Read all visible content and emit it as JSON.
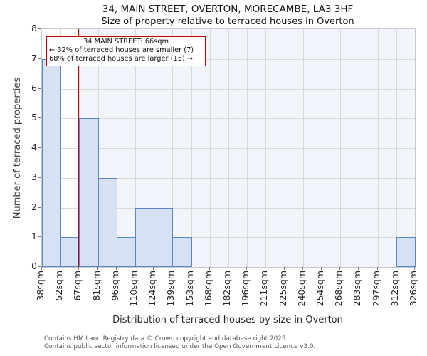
{
  "title": "34, MAIN STREET, OVERTON, MORECAMBE, LA3 3HF",
  "subtitle": "Size of property relative to terraced houses in Overton",
  "annotation": {
    "line1": "34 MAIN STREET: 66sqm",
    "line2": "← 32% of terraced houses are smaller (7)",
    "line3": "68% of terraced houses are larger (15) →"
  },
  "footer": {
    "line1": "Contains HM Land Registry data © Crown copyright and database right 2025.",
    "line2": "Contains public sector information licensed under the Open Government Licence v3.0."
  },
  "chart_data": {
    "type": "bar",
    "title": "34, MAIN STREET, OVERTON, MORECAMBE, LA3 3HF",
    "subtitle": "Size of property relative to terraced houses in Overton",
    "xlabel": "Distribution of terraced houses by size in Overton",
    "ylabel": "Number of terraced properties",
    "bin_edges_sqm": [
      38,
      52,
      67,
      81,
      96,
      110,
      124,
      139,
      153,
      168,
      182,
      196,
      211,
      225,
      240,
      254,
      268,
      283,
      297,
      312,
      326
    ],
    "x_tick_labels": [
      "38sqm",
      "52sqm",
      "67sqm",
      "81sqm",
      "96sqm",
      "110sqm",
      "124sqm",
      "139sqm",
      "153sqm",
      "168sqm",
      "182sqm",
      "196sqm",
      "211sqm",
      "225sqm",
      "240sqm",
      "254sqm",
      "268sqm",
      "283sqm",
      "297sqm",
      "312sqm",
      "326sqm"
    ],
    "values": [
      7,
      1,
      5,
      3,
      1,
      2,
      2,
      1,
      0,
      0,
      0,
      0,
      0,
      0,
      0,
      0,
      0,
      0,
      0,
      1
    ],
    "ylim": [
      0,
      8
    ],
    "y_ticks": [
      0,
      1,
      2,
      3,
      4,
      5,
      6,
      7,
      8
    ],
    "grid": true,
    "marker": {
      "value_sqm": 66,
      "label": "34 MAIN STREET: 66sqm",
      "smaller_pct": 32,
      "smaller_count": 7,
      "larger_pct": 68,
      "larger_count": 15
    },
    "colors": {
      "bar_fill": "#d6e2f3",
      "bar_edge": "#5b87c5",
      "marker_line": "#bf0000",
      "annotation_border": "#bf0000",
      "highlight_bg": "#f2f6fc",
      "grid": "#d8d8d8",
      "spine": "#c9c9c9"
    }
  }
}
